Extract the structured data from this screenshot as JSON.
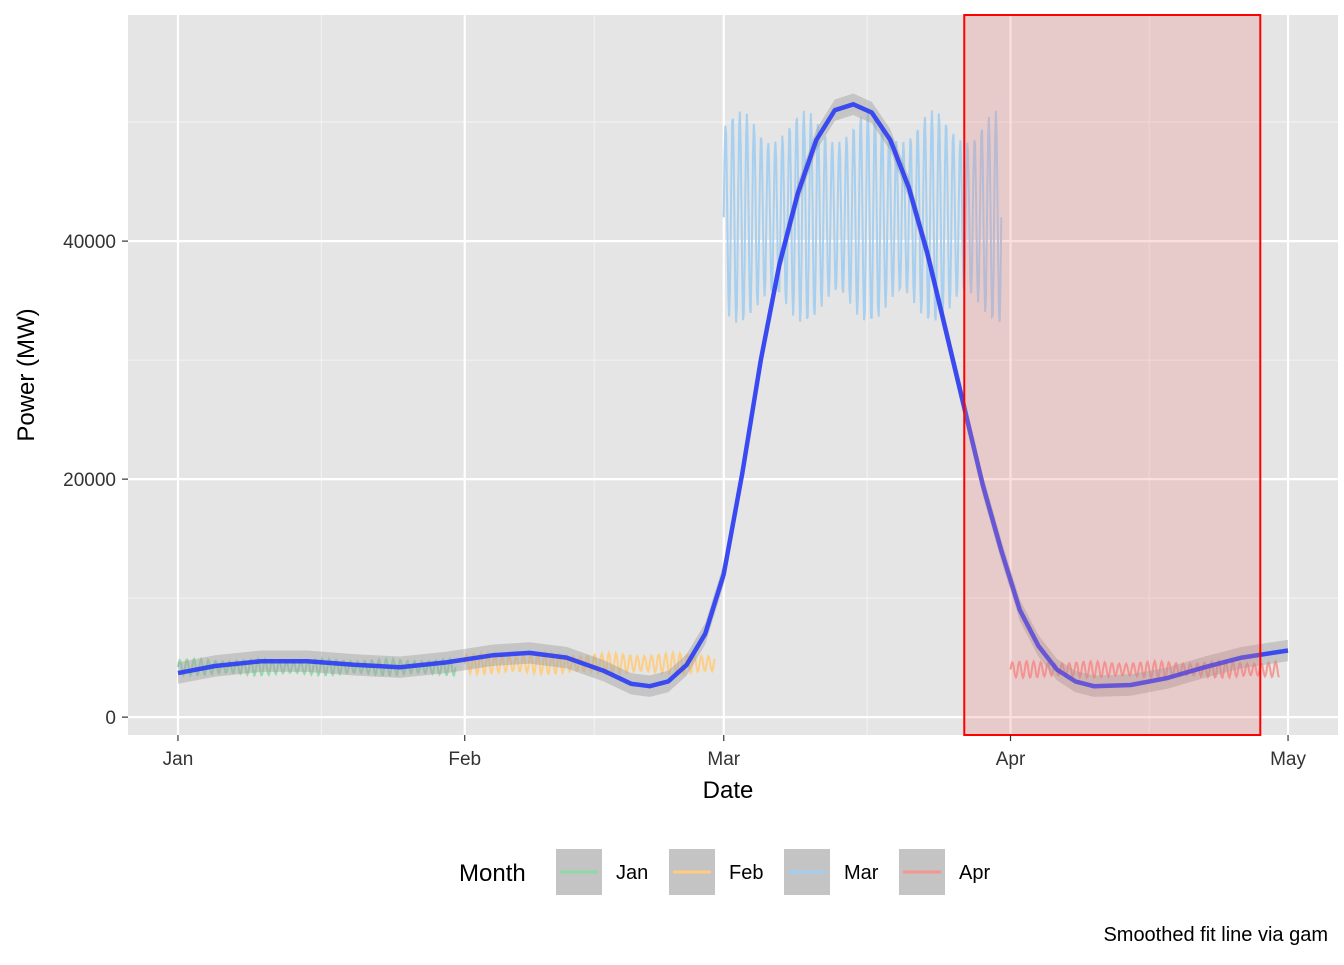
{
  "chart_data": {
    "type": "line",
    "xlabel": "Date",
    "ylabel": "Power (MW)",
    "caption": "Smoothed fit line via gam",
    "x_range": [
      "2023-01-01",
      "2023-05-01"
    ],
    "ylim": [
      -1500,
      59000
    ],
    "y_ticks": [
      0,
      20000,
      40000
    ],
    "y_tick_labels": [
      "0",
      "20000",
      "40000"
    ],
    "x_ticks": [
      "2023-01-01",
      "2023-02-01",
      "2023-03-01",
      "2023-04-01",
      "2023-05-01"
    ],
    "x_tick_labels": [
      "Jan",
      "Feb",
      "Mar",
      "Apr",
      "May"
    ],
    "grid": true,
    "legend": {
      "title": "Month",
      "position": "bottom",
      "entries": [
        {
          "label": "Jan",
          "color": "#8fd9a8"
        },
        {
          "label": "Feb",
          "color": "#ffcc80"
        },
        {
          "label": "Mar",
          "color": "#a3ceef"
        },
        {
          "label": "Apr",
          "color": "#f4968f"
        }
      ]
    },
    "series": [
      {
        "name": "Jan",
        "color": "#8fd9a8",
        "start": "2023-01-01",
        "end": "2023-01-31",
        "base": 4200,
        "amplitude": 700,
        "cycles_per_day": 1
      },
      {
        "name": "Feb",
        "color": "#ffcc80",
        "start": "2023-02-01",
        "end": "2023-02-28",
        "base": 4500,
        "amplitude": 900,
        "cycles_per_day": 1
      },
      {
        "name": "Mar",
        "color": "#a3ceef",
        "start": "2023-03-01",
        "end": "2023-03-31",
        "base": 42000,
        "amplitude": 9000,
        "cycles_per_day": 1
      },
      {
        "name": "Apr",
        "color": "#f4968f",
        "start": "2023-04-01",
        "end": "2023-04-30",
        "base": 4000,
        "amplitude": 700,
        "cycles_per_day": 1
      }
    ],
    "smooth_fit": {
      "color": "#2a3cf5",
      "ribbon_color": "#9e9e9e",
      "points": [
        [
          "2023-01-01",
          3700
        ],
        [
          "2023-01-05",
          4300
        ],
        [
          "2023-01-10",
          4700
        ],
        [
          "2023-01-15",
          4700
        ],
        [
          "2023-01-20",
          4400
        ],
        [
          "2023-01-25",
          4200
        ],
        [
          "2023-01-30",
          4600
        ],
        [
          "2023-02-04",
          5200
        ],
        [
          "2023-02-08",
          5400
        ],
        [
          "2023-02-12",
          5000
        ],
        [
          "2023-02-16",
          3900
        ],
        [
          "2023-02-19",
          2800
        ],
        [
          "2023-02-21",
          2600
        ],
        [
          "2023-02-23",
          3000
        ],
        [
          "2023-02-25",
          4400
        ],
        [
          "2023-02-27",
          7000
        ],
        [
          "2023-03-01",
          12000
        ],
        [
          "2023-03-03",
          20500
        ],
        [
          "2023-03-05",
          30000
        ],
        [
          "2023-03-07",
          38000
        ],
        [
          "2023-03-09",
          44000
        ],
        [
          "2023-03-11",
          48500
        ],
        [
          "2023-03-13",
          51000
        ],
        [
          "2023-03-15",
          51500
        ],
        [
          "2023-03-17",
          50800
        ],
        [
          "2023-03-19",
          48500
        ],
        [
          "2023-03-21",
          44500
        ],
        [
          "2023-03-23",
          39000
        ],
        [
          "2023-03-25",
          32500
        ],
        [
          "2023-03-27",
          26000
        ],
        [
          "2023-03-29",
          19500
        ],
        [
          "2023-03-31",
          14000
        ],
        [
          "2023-04-02",
          9000
        ],
        [
          "2023-04-04",
          6000
        ],
        [
          "2023-04-06",
          4000
        ],
        [
          "2023-04-08",
          3000
        ],
        [
          "2023-04-10",
          2600
        ],
        [
          "2023-04-14",
          2700
        ],
        [
          "2023-04-18",
          3300
        ],
        [
          "2023-04-22",
          4200
        ],
        [
          "2023-04-26",
          5000
        ],
        [
          "2023-05-01",
          5600
        ]
      ]
    },
    "highlight_region": {
      "x_start": "2023-03-27",
      "x_end": "2023-04-28",
      "fill": "#f08080",
      "stroke": "#ff0000"
    }
  }
}
